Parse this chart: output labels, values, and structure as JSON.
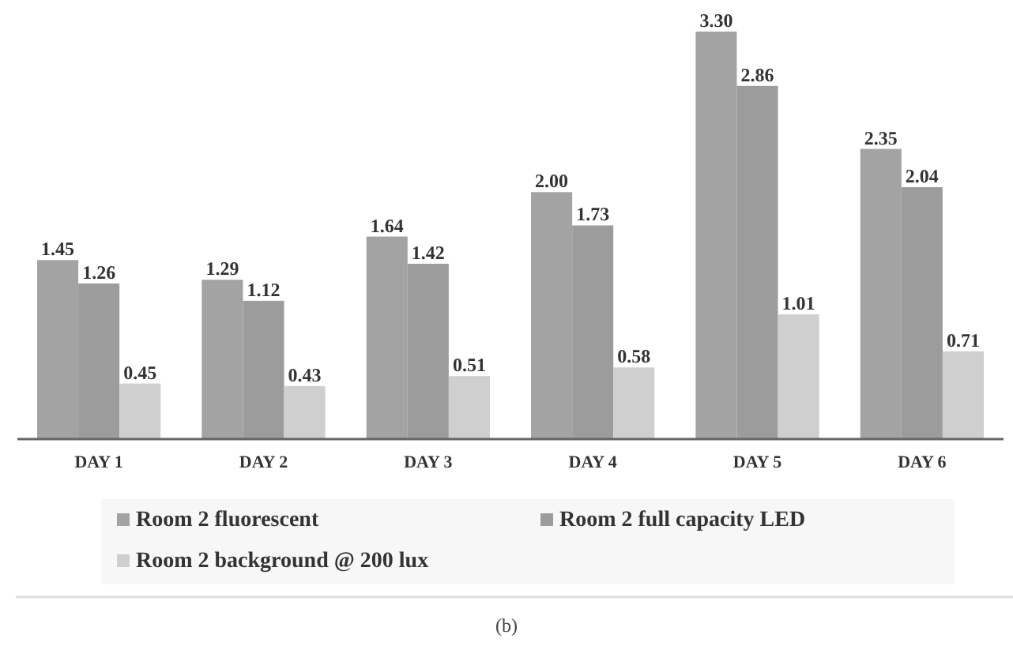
{
  "chart_data": {
    "type": "bar",
    "categories": [
      "DAY 1",
      "DAY 2",
      "DAY 3",
      "DAY 4",
      "DAY 5",
      "DAY 6"
    ],
    "series": [
      {
        "name": "Room 2 fluorescent",
        "color": "#a3a3a3",
        "values": [
          1.45,
          1.29,
          1.64,
          2.0,
          3.3,
          2.35
        ],
        "value_labels": [
          "1.45",
          "1.29",
          "1.64",
          "2.00",
          "3.30",
          "2.35"
        ]
      },
      {
        "name": "Room 2 full capacity LED",
        "color": "#9c9c9c",
        "values": [
          1.26,
          1.12,
          1.42,
          1.73,
          2.86,
          2.04
        ],
        "value_labels": [
          "1.26",
          "1.12",
          "1.42",
          "1.73",
          "2.86",
          "2.04"
        ]
      },
      {
        "name": "Room 2 background @ 200 lux",
        "color": "#cfcfcf",
        "values": [
          0.45,
          0.43,
          0.51,
          0.58,
          1.01,
          0.71
        ],
        "value_labels": [
          "0.45",
          "0.43",
          "0.51",
          "0.58",
          "1.01",
          "0.71"
        ]
      }
    ],
    "legend": "bottom",
    "annotations": [
      "(b)"
    ]
  }
}
